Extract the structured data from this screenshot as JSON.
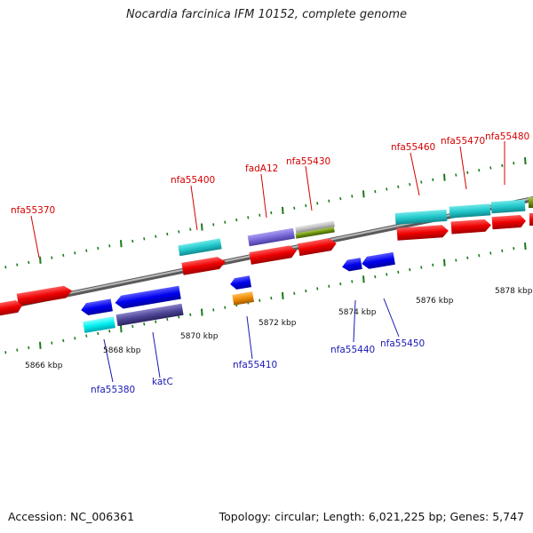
{
  "title": "Nocardia farcinica IFM 10152, complete genome",
  "footer": {
    "accession": "Accession: NC_006361",
    "summary": "Topology: circular; Length: 6,021,225 bp; Genes: 5,747"
  },
  "colors": {
    "forward_label": "#d40000",
    "reverse_label": "#1818b4",
    "backbone": "#8a8a8a"
  },
  "kbp_labels": [
    "5866 kbp",
    "5868 kbp",
    "5870 kbp",
    "5872 kbp",
    "5874 kbp",
    "5876 kbp",
    "5878 kbp"
  ],
  "forward_labels": [
    "nfa55370",
    "nfa55400",
    "fadA12",
    "nfa55430",
    "nfa55460",
    "nfa55470",
    "nfa55480"
  ],
  "reverse_labels": [
    "nfa55380",
    "katC",
    "nfa55410",
    "nfa55440",
    "nfa55450"
  ]
}
